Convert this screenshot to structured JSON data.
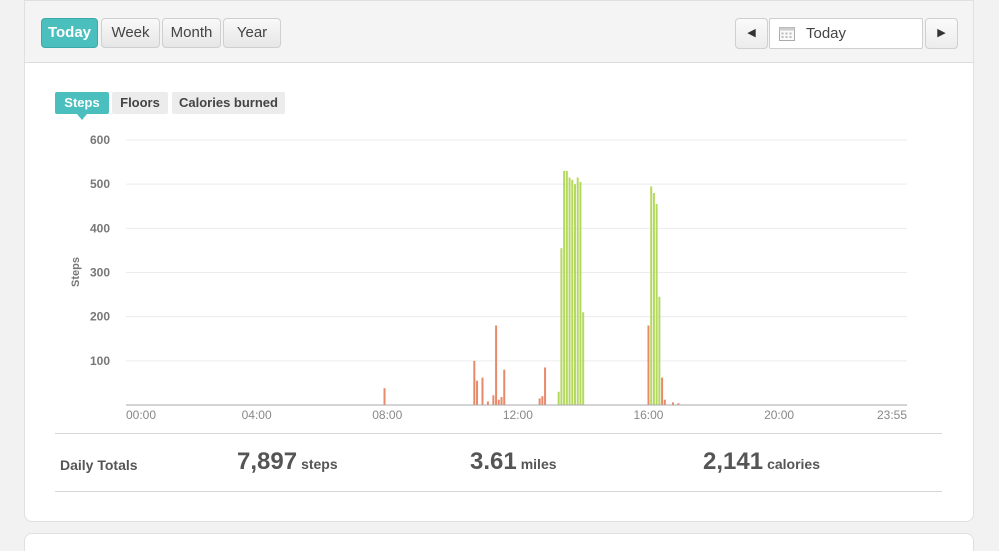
{
  "range_buttons": [
    "Today",
    "Week",
    "Month",
    "Year"
  ],
  "active_range": "Today",
  "date_picker": {
    "value": "Today",
    "icon": "calendar-icon"
  },
  "nav": {
    "prev_icon": "triangle-left-icon",
    "next_icon": "triangle-right-icon"
  },
  "metric_tabs": [
    "Steps",
    "Floors",
    "Calories burned"
  ],
  "active_metric": "Steps",
  "colors": {
    "accent": "#4bbfbd",
    "low_activity": "#e8896a",
    "high_activity": "#b5d95f"
  },
  "chart_data": {
    "type": "bar",
    "ylabel": "Steps",
    "ylim": [
      0,
      600
    ],
    "yticks": [
      "600",
      "500",
      "400",
      "300",
      "200",
      "100"
    ],
    "xticks": [
      "00:00",
      "04:00",
      "08:00",
      "12:00",
      "16:00",
      "20:00",
      "23:55"
    ],
    "xlim_minutes": [
      0,
      1435
    ],
    "bars": [
      {
        "t": 475,
        "v": 38,
        "level": "low"
      },
      {
        "t": 640,
        "v": 100,
        "level": "low"
      },
      {
        "t": 645,
        "v": 55,
        "level": "low"
      },
      {
        "t": 655,
        "v": 62,
        "level": "low"
      },
      {
        "t": 665,
        "v": 8,
        "level": "low"
      },
      {
        "t": 675,
        "v": 22,
        "level": "low"
      },
      {
        "t": 680,
        "v": 180,
        "level": "low"
      },
      {
        "t": 685,
        "v": 12,
        "level": "low"
      },
      {
        "t": 690,
        "v": 18,
        "level": "low"
      },
      {
        "t": 695,
        "v": 80,
        "level": "low"
      },
      {
        "t": 760,
        "v": 15,
        "level": "low"
      },
      {
        "t": 765,
        "v": 20,
        "level": "low"
      },
      {
        "t": 770,
        "v": 85,
        "level": "low"
      },
      {
        "t": 795,
        "v": 30,
        "level": "high"
      },
      {
        "t": 800,
        "v": 355,
        "level": "high"
      },
      {
        "t": 805,
        "v": 530,
        "level": "high"
      },
      {
        "t": 810,
        "v": 530,
        "level": "high"
      },
      {
        "t": 815,
        "v": 515,
        "level": "high"
      },
      {
        "t": 820,
        "v": 510,
        "level": "high"
      },
      {
        "t": 825,
        "v": 500,
        "level": "high"
      },
      {
        "t": 830,
        "v": 515,
        "level": "high"
      },
      {
        "t": 835,
        "v": 505,
        "level": "high"
      },
      {
        "t": 840,
        "v": 210,
        "level": "high"
      },
      {
        "t": 960,
        "v": 180,
        "level": "low"
      },
      {
        "t": 965,
        "v": 495,
        "level": "high"
      },
      {
        "t": 970,
        "v": 480,
        "level": "high"
      },
      {
        "t": 975,
        "v": 455,
        "level": "high"
      },
      {
        "t": 980,
        "v": 245,
        "level": "high"
      },
      {
        "t": 985,
        "v": 62,
        "level": "low"
      },
      {
        "t": 990,
        "v": 12,
        "level": "low"
      },
      {
        "t": 1005,
        "v": 6,
        "level": "low"
      },
      {
        "t": 1015,
        "v": 4,
        "level": "low"
      }
    ]
  },
  "daily_totals": {
    "label": "Daily Totals",
    "steps": {
      "value": "7,897",
      "unit": "steps"
    },
    "distance": {
      "value": "3.61",
      "unit": "miles"
    },
    "calories": {
      "value": "2,141",
      "unit": "calories"
    }
  }
}
